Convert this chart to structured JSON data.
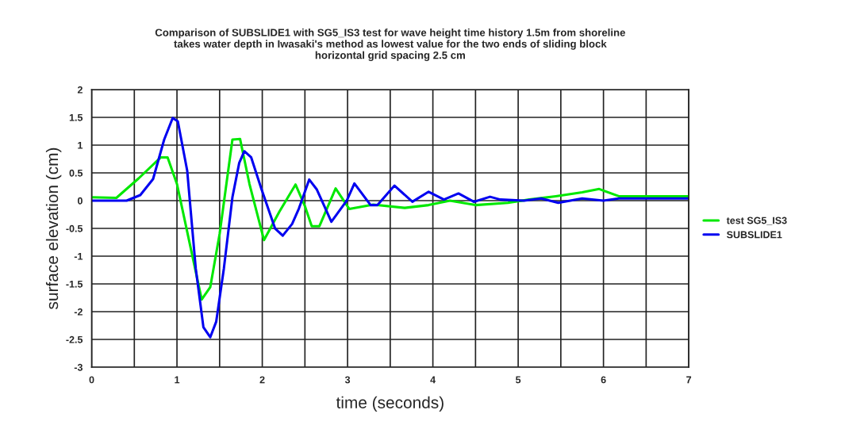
{
  "chart_data": {
    "type": "line",
    "title": "Comparison of SUBSLIDE1 with SG5_IS3 test for wave height time history 1.5m from shoreline\ntakes water depth in Iwasaki's method as lowest value for the two ends of sliding block\nhorizontal grid spacing 2.5 cm",
    "xlabel": "time (seconds)",
    "ylabel": "surface elevation (cm)",
    "xlim": [
      0,
      7
    ],
    "ylim": [
      -3,
      2
    ],
    "xticks": [
      0,
      {
        "value": 0.5,
        "label": null
      },
      1,
      {
        "value": 1.5,
        "label": null
      },
      2,
      {
        "value": 2.5,
        "label": null
      },
      3,
      {
        "value": 3.5,
        "label": null
      },
      4,
      {
        "value": 4.5,
        "label": null
      },
      5,
      {
        "value": 5.5,
        "label": null
      },
      6,
      {
        "value": 6.5,
        "label": null
      },
      7
    ],
    "yticks": [
      -3,
      -2.5,
      -2,
      -1.5,
      -1,
      -0.5,
      0,
      0.5,
      1,
      1.5,
      2
    ],
    "grid": true,
    "legend": "right",
    "line_style": "solid",
    "series": [
      {
        "name": "test SG5_IS3",
        "color": "#00e800",
        "x": [
          0,
          0.29,
          0.55,
          0.81,
          0.89,
          1.0,
          1.29,
          1.39,
          1.5,
          1.65,
          1.74,
          1.85,
          2.02,
          2.2,
          2.39,
          2.5,
          2.58,
          2.67,
          2.86,
          3.02,
          3.3,
          3.67,
          3.95,
          4.2,
          4.5,
          4.88,
          5.13,
          5.44,
          5.75,
          5.95,
          6.18,
          7
        ],
        "values": [
          0.06,
          0.05,
          0.4,
          0.78,
          0.78,
          0.3,
          -1.78,
          -1.56,
          -0.6,
          1.1,
          1.11,
          0.3,
          -0.71,
          -0.2,
          0.29,
          -0.1,
          -0.46,
          -0.46,
          0.22,
          -0.15,
          -0.07,
          -0.13,
          -0.08,
          0.0,
          -0.08,
          -0.04,
          0.02,
          0.08,
          0.15,
          0.21,
          0.08,
          0.08
        ]
      },
      {
        "name": "SUBSLIDE1",
        "color": "#0000f0",
        "x": [
          0,
          0.41,
          0.57,
          0.72,
          0.85,
          0.95,
          1.01,
          1.12,
          1.22,
          1.31,
          1.39,
          1.46,
          1.55,
          1.65,
          1.73,
          1.79,
          1.87,
          1.99,
          2.15,
          2.24,
          2.35,
          2.43,
          2.55,
          2.64,
          2.81,
          2.99,
          3.08,
          3.27,
          3.35,
          3.55,
          3.76,
          3.95,
          4.13,
          4.3,
          4.48,
          4.67,
          4.79,
          5.07,
          5.27,
          5.47,
          5.75,
          6.0,
          6.18,
          7
        ],
        "values": [
          0,
          0,
          0.1,
          0.39,
          1.1,
          1.49,
          1.43,
          0.54,
          -1.22,
          -2.28,
          -2.46,
          -2.18,
          -1.22,
          0.06,
          0.68,
          0.89,
          0.78,
          0.21,
          -0.5,
          -0.63,
          -0.42,
          -0.14,
          0.38,
          0.2,
          -0.38,
          0.0,
          0.31,
          -0.08,
          -0.08,
          0.27,
          -0.02,
          0.16,
          0.02,
          0.13,
          -0.02,
          0.07,
          0.02,
          0.0,
          0.04,
          -0.04,
          0.04,
          0.0,
          0.04,
          0.04
        ]
      }
    ]
  }
}
